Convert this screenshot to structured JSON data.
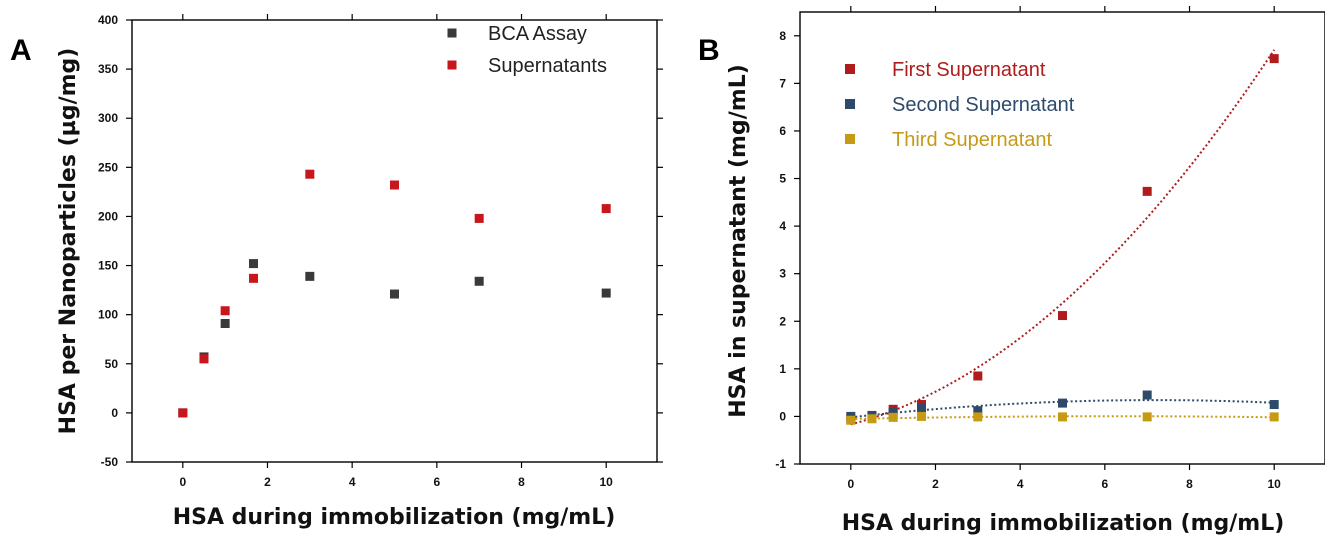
{
  "chart_data": [
    {
      "panel_label": "A",
      "type": "scatter",
      "xlabel": "HSA during immobilization (mg/mL)",
      "ylabel": "HSA per Nanoparticles (µg/mg)",
      "xlim": [
        -1.2,
        11.2
      ],
      "ylim": [
        -50,
        400
      ],
      "xticks": [
        0,
        2,
        4,
        6,
        8,
        10
      ],
      "yticks": [
        -50,
        0,
        50,
        100,
        150,
        200,
        250,
        300,
        350,
        400
      ],
      "grid": false,
      "legend_position": "top-right",
      "series": [
        {
          "name": "BCA Assay",
          "color": "#3a3a3a",
          "points": [
            [
              0,
              0
            ],
            [
              0.5,
              57
            ],
            [
              1,
              91
            ],
            [
              1.67,
              152
            ],
            [
              3,
              139
            ],
            [
              5,
              121
            ],
            [
              7,
              134
            ],
            [
              10,
              122
            ]
          ]
        },
        {
          "name": "Supernatants",
          "color": "#c8161d",
          "points": [
            [
              0,
              0
            ],
            [
              0.5,
              55
            ],
            [
              1,
              104
            ],
            [
              1.67,
              137
            ],
            [
              3,
              243
            ],
            [
              5,
              232
            ],
            [
              7,
              198
            ],
            [
              10,
              208
            ]
          ]
        }
      ]
    },
    {
      "panel_label": "B",
      "type": "scatter",
      "xlabel": "HSA during immobilization (mg/mL)",
      "ylabel": "HSA in supernatant (mg/mL)",
      "xlim": [
        -1.2,
        11.2
      ],
      "ylim": [
        -1,
        8.5
      ],
      "xticks": [
        0,
        2,
        4,
        6,
        8,
        10
      ],
      "yticks": [
        -1,
        0,
        1,
        2,
        3,
        4,
        5,
        6,
        7,
        8
      ],
      "grid": false,
      "legend_position": "top-left",
      "series": [
        {
          "name": "First Supernatant",
          "color": "#b01c1c",
          "points": [
            [
              0,
              -0.05
            ],
            [
              0.5,
              0.02
            ],
            [
              1,
              0.15
            ],
            [
              1.67,
              0.25
            ],
            [
              3,
              0.85
            ],
            [
              5,
              2.12
            ],
            [
              7,
              4.73
            ],
            [
              10,
              7.52
            ]
          ],
          "fit": "quadratic"
        },
        {
          "name": "Second Supernatant",
          "color": "#2e4a6b",
          "points": [
            [
              0,
              0.0
            ],
            [
              0.5,
              0.02
            ],
            [
              1,
              0.08
            ],
            [
              1.67,
              0.17
            ],
            [
              3,
              0.12
            ],
            [
              5,
              0.28
            ],
            [
              7,
              0.45
            ],
            [
              10,
              0.25
            ]
          ],
          "fit": "quadratic"
        },
        {
          "name": "Third Supernatant",
          "color": "#c79a14",
          "points": [
            [
              0,
              -0.08
            ],
            [
              0.5,
              -0.05
            ],
            [
              1,
              -0.02
            ],
            [
              1.67,
              0.0
            ],
            [
              3,
              -0.01
            ],
            [
              5,
              -0.01
            ],
            [
              7,
              -0.01
            ],
            [
              10,
              -0.01
            ]
          ],
          "fit": "quadratic"
        }
      ]
    }
  ]
}
